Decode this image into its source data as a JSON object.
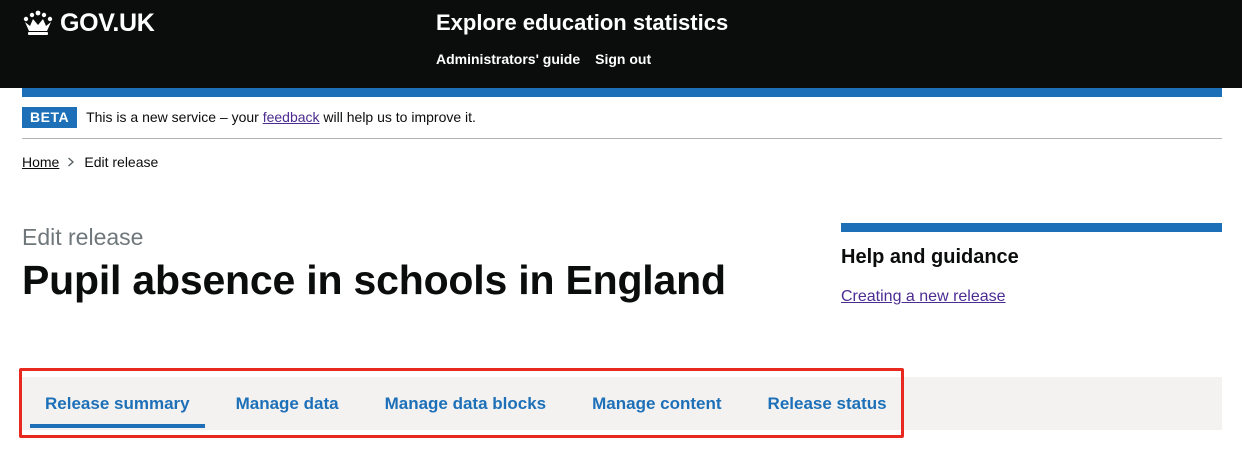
{
  "header": {
    "logo_text": "GOV.UK",
    "service_name": "Explore education statistics",
    "nav": [
      {
        "label": "Administrators' guide"
      },
      {
        "label": "Sign out"
      }
    ]
  },
  "beta_banner": {
    "tag": "BETA",
    "text_before": "This is a new service – your ",
    "link_text": "feedback",
    "text_after": " will help us to improve it."
  },
  "breadcrumbs": {
    "home": "Home",
    "current": "Edit release"
  },
  "page": {
    "caption": "Edit release",
    "title": "Pupil absence in schools in England"
  },
  "help": {
    "title": "Help and guidance",
    "link": "Creating a new release"
  },
  "tabs": [
    {
      "label": "Release summary",
      "active": true
    },
    {
      "label": "Manage data",
      "active": false
    },
    {
      "label": "Manage data blocks",
      "active": false
    },
    {
      "label": "Manage content",
      "active": false
    },
    {
      "label": "Release status",
      "active": false
    }
  ],
  "colors": {
    "header_bg": "#0b0c0c",
    "brand_blue": "#1d70b8",
    "visited_link": "#4c2c92",
    "highlight": "#e8291f"
  },
  "icons": {
    "logo": "crown-icon",
    "breadcrumb_separator": "chevron-right-icon"
  }
}
